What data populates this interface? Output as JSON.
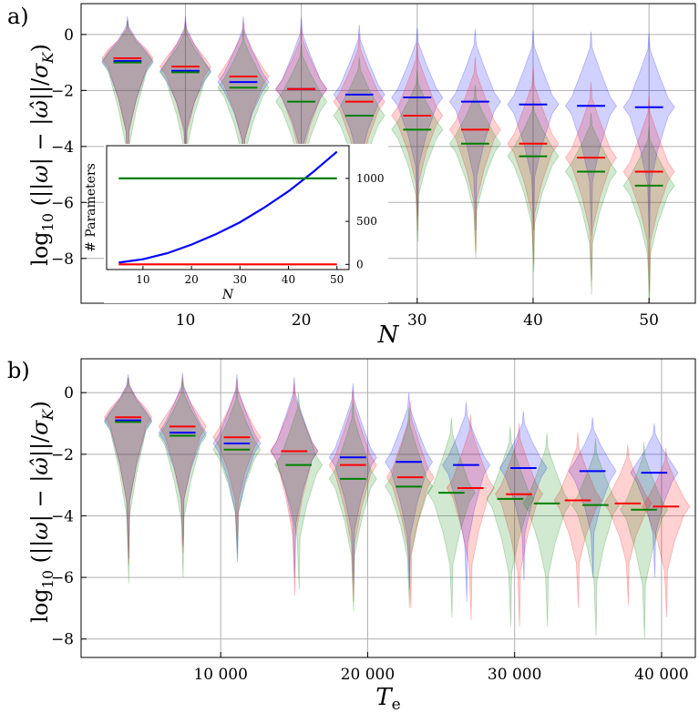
{
  "colors": {
    "blue": "#0000ff",
    "red": "#ff0000",
    "green": "#008000"
  },
  "chart_data": [
    {
      "type": "violin",
      "panel_label": "a)",
      "xlabel": "N",
      "ylabel": "log10(||ω| − |ω̂||/σK)",
      "xlim": [
        1,
        54
      ],
      "ylim": [
        -9.6,
        1.1
      ],
      "xticks": [
        10,
        20,
        30,
        40,
        50
      ],
      "yticks": [
        0,
        -2,
        -4,
        -6,
        -8
      ],
      "grid": true,
      "positions": [
        5,
        10,
        15,
        20,
        25,
        30,
        35,
        40,
        45,
        50
      ],
      "series": [
        {
          "color": "blue",
          "medians": [
            -0.95,
            -1.3,
            -1.7,
            -1.95,
            -2.15,
            -2.25,
            -2.4,
            -2.5,
            -2.55,
            -2.6
          ],
          "mins": [
            -5.2,
            -4.8,
            -5.2,
            -5.5,
            -6.0,
            -6.5,
            -7.0,
            -7.0,
            -7.2,
            -7.3
          ],
          "maxs": [
            0.65,
            0.65,
            0.65,
            0.6,
            0.35,
            0.25,
            0.2,
            0.15,
            0.1,
            0.05
          ]
        },
        {
          "color": "red",
          "medians": [
            -0.85,
            -1.15,
            -1.5,
            -1.95,
            -2.4,
            -2.9,
            -3.4,
            -3.9,
            -4.4,
            -4.9
          ],
          "mins": [
            -5.4,
            -5.2,
            -5.4,
            -6.0,
            -6.6,
            -7.0,
            -7.8,
            -8.2,
            -8.8,
            -9.2
          ],
          "maxs": [
            0.5,
            0.5,
            0.45,
            0.3,
            0.0,
            -0.3,
            -0.8,
            -1.2,
            -1.7,
            -2.2
          ]
        },
        {
          "color": "green",
          "medians": [
            -1.0,
            -1.35,
            -1.9,
            -2.4,
            -2.9,
            -3.4,
            -3.9,
            -4.35,
            -4.9,
            -5.4
          ],
          "mins": [
            -6.2,
            -6.0,
            -6.0,
            -6.4,
            -6.9,
            -7.4,
            -8.0,
            -8.5,
            -9.3,
            -9.6
          ],
          "maxs": [
            0.5,
            0.4,
            0.2,
            -0.3,
            -0.8,
            -1.3,
            -1.8,
            -2.3,
            -2.8,
            -3.3
          ]
        }
      ],
      "inset": {
        "type": "line",
        "xlabel": "N",
        "ylabel": "# Parameters",
        "xlim": [
          2.5,
          52.5
        ],
        "ylim": [
          -60,
          1380
        ],
        "xticks": [
          10,
          20,
          30,
          40,
          50
        ],
        "yticks": [
          0,
          500,
          1000
        ],
        "series": [
          {
            "color": "blue",
            "x": [
              5,
              10,
              15,
              20,
              25,
              30,
              35,
              40,
              45,
              50
            ],
            "y": [
              20,
              60,
              130,
              230,
              350,
              490,
              660,
              850,
              1070,
              1310
            ]
          },
          {
            "color": "green",
            "x": [
              5,
              50
            ],
            "y": [
              1000,
              1000
            ]
          },
          {
            "color": "red",
            "x": [
              5,
              50
            ],
            "y": [
              0,
              0
            ]
          }
        ]
      }
    },
    {
      "type": "violin",
      "panel_label": "b)",
      "xlabel": "T_e",
      "ylabel": "log10(||ω| − |ω̂||/σK)",
      "xlim": [
        500,
        42300
      ],
      "ylim": [
        -8.6,
        1.1
      ],
      "xticks": [
        10000,
        20000,
        30000,
        40000
      ],
      "xticklabels": [
        "10 000",
        "20 000",
        "30 000",
        "40 000"
      ],
      "yticks": [
        0,
        -2,
        -4,
        -6,
        -8
      ],
      "grid": true,
      "series": [
        {
          "color": "blue",
          "positions": [
            3700,
            7400,
            11100,
            15000,
            19000,
            22800,
            26700,
            30600,
            35300,
            39500
          ],
          "medians": [
            -0.9,
            -1.3,
            -1.65,
            -1.9,
            -2.1,
            -2.25,
            -2.35,
            -2.45,
            -2.55,
            -2.6
          ],
          "mins": [
            -5.4,
            -5.0,
            -5.5,
            -6.0,
            -6.2,
            -6.4,
            -6.8,
            -6.1,
            -6.0,
            -6.0
          ],
          "maxs": [
            0.6,
            0.65,
            0.6,
            0.5,
            0.3,
            0.0,
            -0.3,
            -0.6,
            -0.8,
            -1.0
          ]
        },
        {
          "color": "red",
          "positions": [
            3700,
            7400,
            11100,
            15000,
            19000,
            22900,
            27000,
            30300,
            34300,
            37700,
            40300
          ],
          "medians": [
            -0.8,
            -1.1,
            -1.45,
            -1.9,
            -2.35,
            -2.75,
            -3.1,
            -3.3,
            -3.5,
            -3.6,
            -3.7
          ],
          "mins": [
            -5.6,
            -5.2,
            -5.0,
            -6.6,
            -6.8,
            -7.0,
            -7.4,
            -7.6,
            -7.0,
            -6.9,
            -7.3
          ],
          "maxs": [
            0.5,
            0.5,
            0.45,
            0.3,
            0.1,
            -0.3,
            -0.7,
            -1.0,
            -1.3,
            -1.7,
            -1.8
          ]
        },
        {
          "color": "green",
          "positions": [
            3700,
            7400,
            11100,
            15300,
            19000,
            22800,
            25700,
            29700,
            32200,
            35500,
            38800
          ],
          "medians": [
            -0.95,
            -1.4,
            -1.85,
            -2.35,
            -2.8,
            -3.05,
            -3.25,
            -3.45,
            -3.6,
            -3.65,
            -3.8
          ],
          "mins": [
            -6.2,
            -6.0,
            -5.4,
            -6.4,
            -7.1,
            -7.0,
            -7.3,
            -7.6,
            -7.6,
            -7.9,
            -8.0
          ],
          "maxs": [
            0.5,
            0.4,
            0.2,
            0.0,
            -0.3,
            -0.5,
            -0.8,
            -1.1,
            -1.3,
            -1.5,
            -1.6
          ]
        }
      ]
    }
  ]
}
